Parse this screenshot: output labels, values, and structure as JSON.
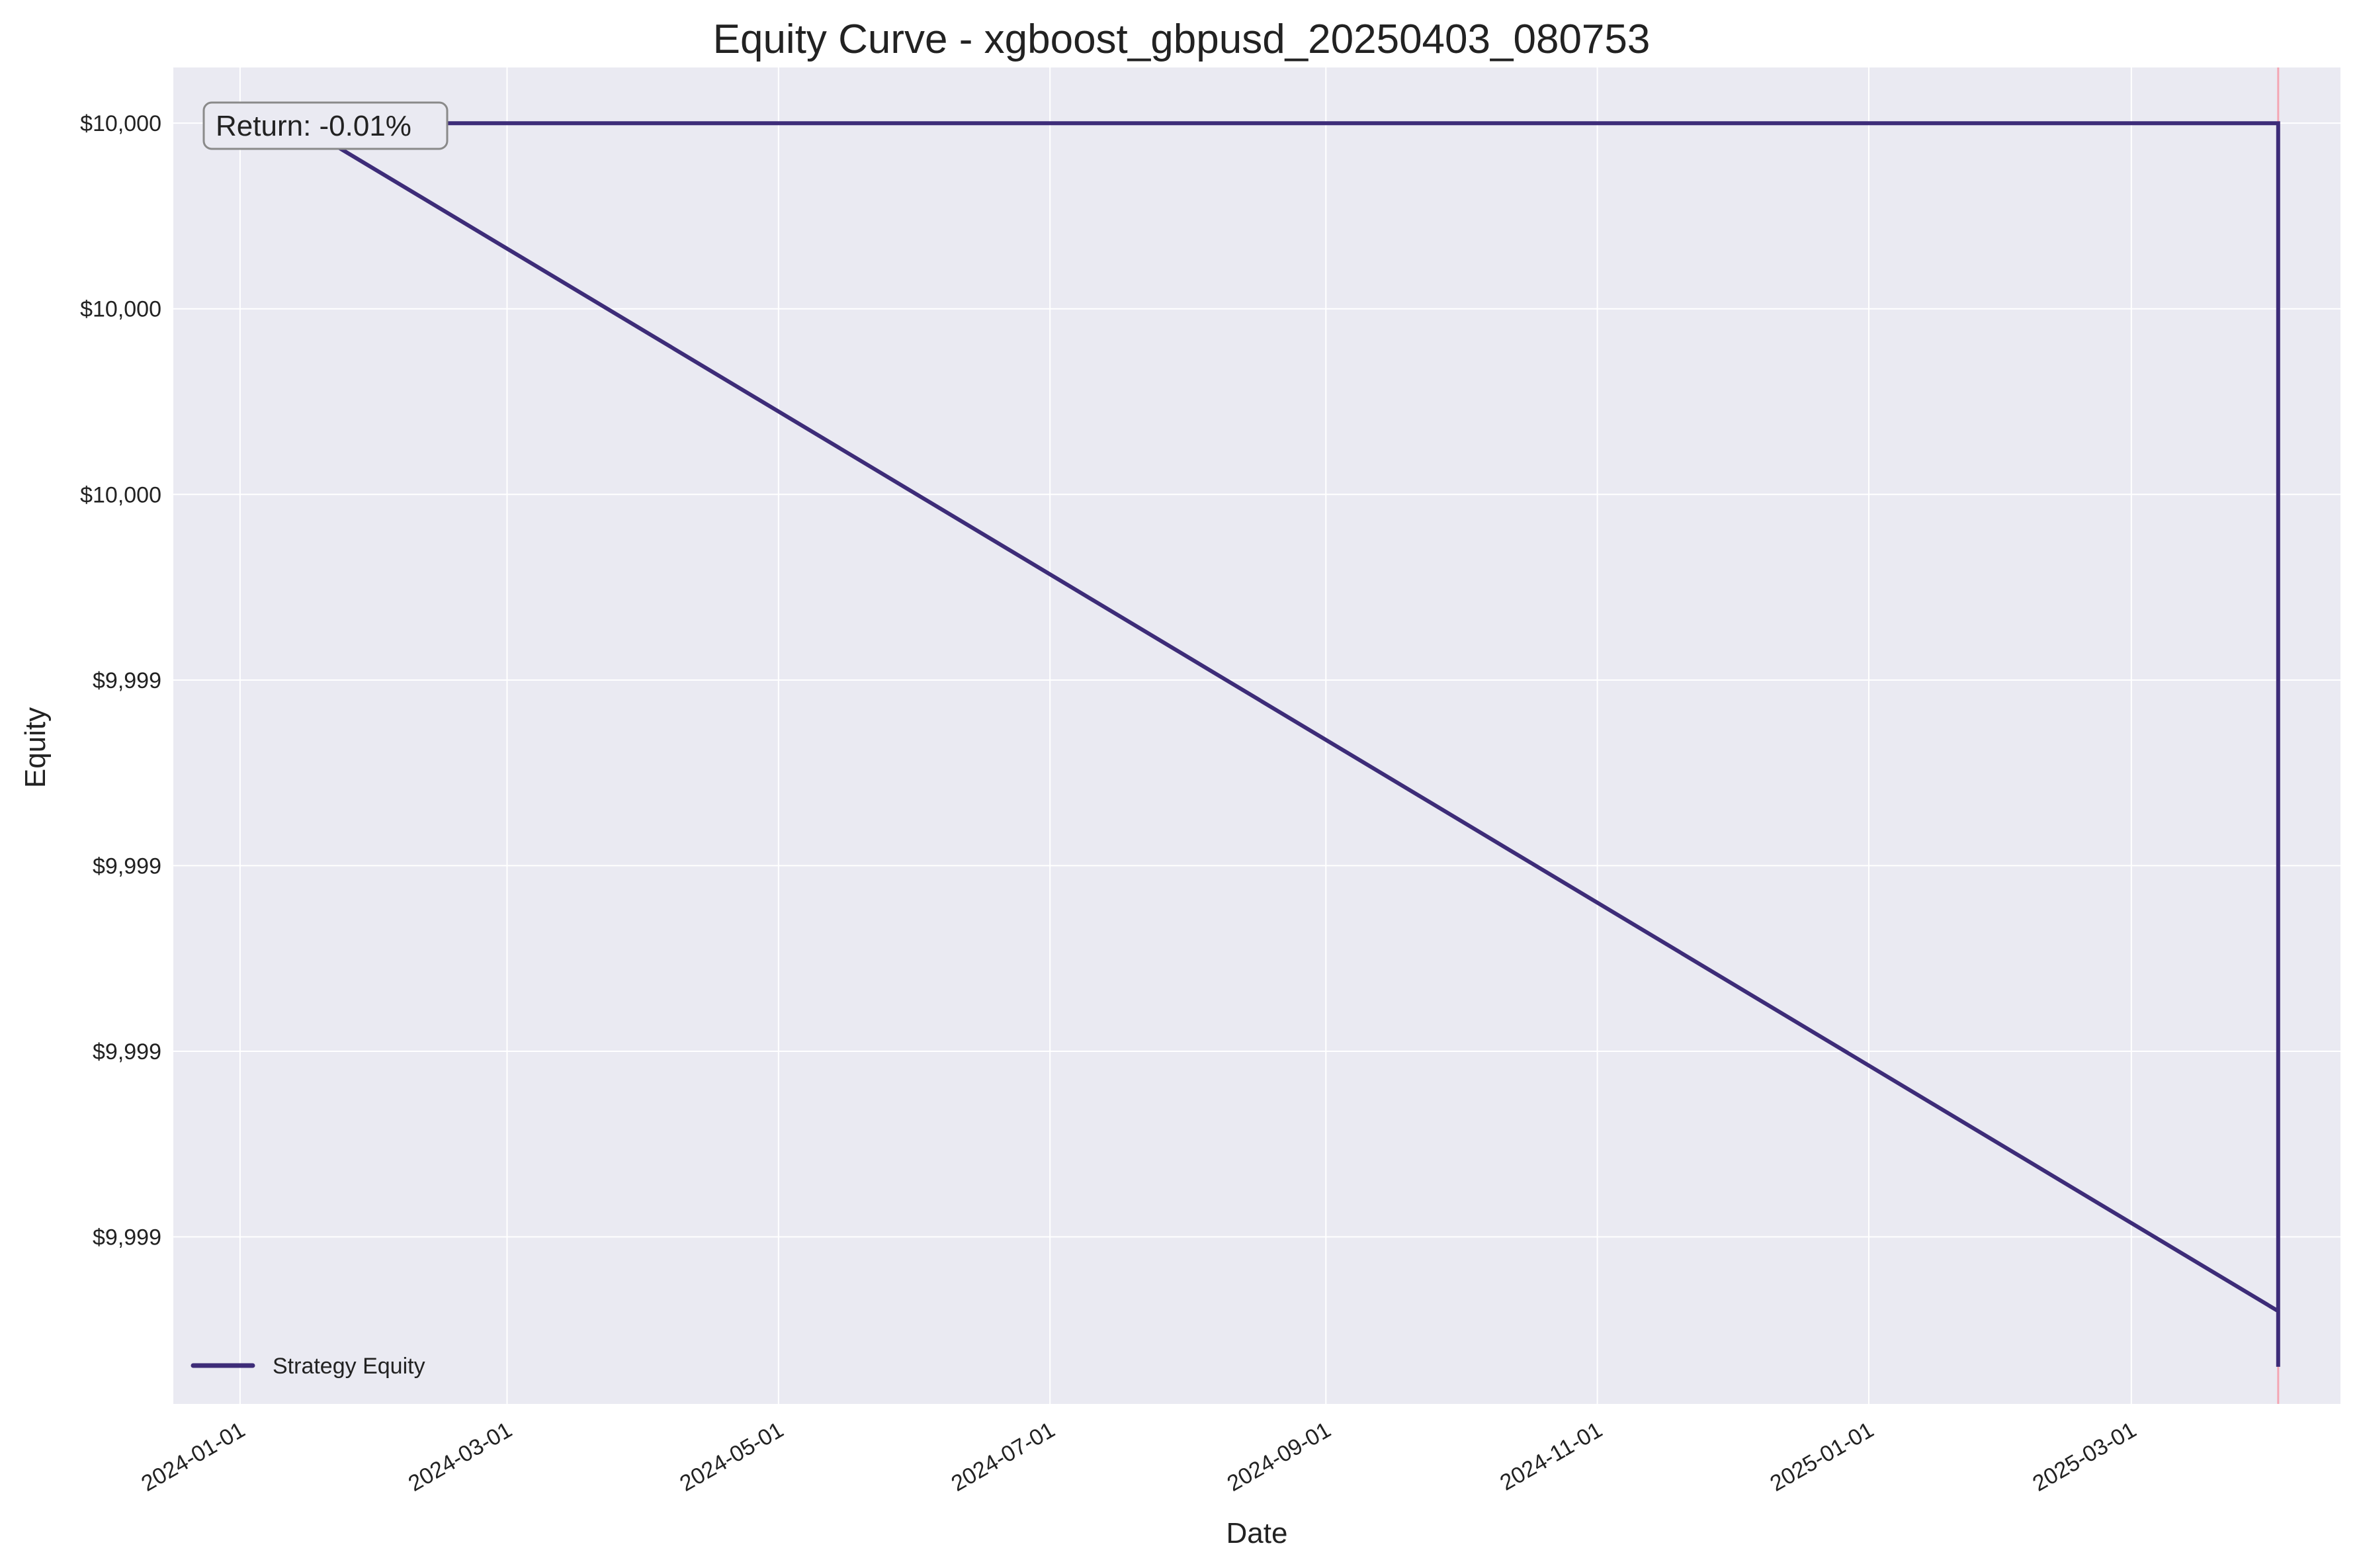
{
  "chart_data": {
    "type": "line",
    "title": "Equity Curve - xgboost_gbpusd_20250403_080753",
    "xlabel": "Date",
    "ylabel": "Equity",
    "x_ticks": [
      "2024-01-01",
      "2024-03-01",
      "2024-05-01",
      "2024-07-01",
      "2024-09-01",
      "2024-11-01",
      "2025-01-01",
      "2025-03-01"
    ],
    "y_ticks": [
      {
        "value": 9998.9997,
        "label": "$9,999"
      },
      {
        "value": 9998.9998,
        "label": "$9,999"
      },
      {
        "value": 9998.9999,
        "label": "$9,999"
      },
      {
        "value": 9999.0,
        "label": "$9,999"
      },
      {
        "value": 9999.0001,
        "label": "$10,000"
      },
      {
        "value": 9999.0002,
        "label": "$10,000"
      },
      {
        "value": 9999.0003,
        "label": "$10,000"
      }
    ],
    "xlim": [
      "2023-12-17",
      "2025-04-17"
    ],
    "ylim": [
      9998.99961,
      9999.00033
    ],
    "grid": true,
    "legend_position": "lower-left",
    "series": [
      {
        "name": "Strategy Equity",
        "color": "#3d2c78",
        "x": [
          "2024-01-14",
          "2025-04-03",
          "2025-04-03",
          "2025-04-03",
          "2025-04-03",
          "2025-04-03",
          "2024-01-14"
        ],
        "y": [
          9999.0003,
          9998.99966,
          9998.99963,
          9998.99969,
          9998.99966,
          9999.0003,
          9999.0003
        ]
      }
    ],
    "vline": {
      "x": "2025-04-03",
      "color": "#f4a6b4"
    },
    "annotation": {
      "text": "Return: -0.01%"
    }
  }
}
